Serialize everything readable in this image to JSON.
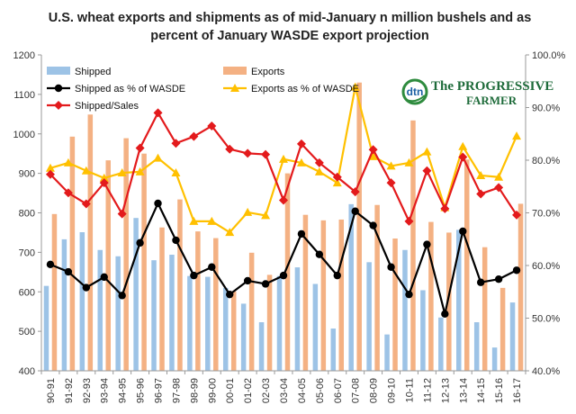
{
  "chart_data": {
    "type": "bar",
    "title_lines": [
      "U.S. wheat exports and shipments as of mid-January n million bushels and as",
      "percent of January WASDE export projection"
    ],
    "categories": [
      "90-91",
      "91-92",
      "92-93",
      "93-94",
      "94-95",
      "95-96",
      "96-97",
      "97-98",
      "98-99",
      "99-00",
      "00-01",
      "01-02",
      "02-03",
      "03-04",
      "04-05",
      "05-06",
      "06-07",
      "07-08",
      "08-09",
      "09-10",
      "10-11",
      "11-12",
      "12-13",
      "13-14",
      "14-15",
      "15-16",
      "16-17"
    ],
    "y_left": {
      "min": 400,
      "max": 1200,
      "step": 100
    },
    "y_right": {
      "min": 40,
      "max": 100,
      "step": 10,
      "suffix": ".0%"
    },
    "bar_series": [
      {
        "name": "Shipped",
        "color": "#9dc3e6",
        "values": [
          615,
          733,
          751,
          706,
          690,
          787,
          680,
          694,
          640,
          638,
          610,
          570,
          523,
          640,
          662,
          620,
          507,
          822,
          675,
          492,
          706,
          604,
          535,
          757,
          523,
          459,
          573
        ]
      },
      {
        "name": "Exports",
        "color": "#f4b183",
        "values": [
          797,
          993,
          1049,
          933,
          989,
          950,
          763,
          834,
          753,
          736,
          601,
          699,
          643,
          900,
          795,
          781,
          783,
          1130,
          820,
          735,
          1034,
          777,
          750,
          935,
          713,
          610,
          823
        ]
      }
    ],
    "line_series": [
      {
        "name": "Shipped as % of WASDE",
        "color": "#000000",
        "marker": "circle",
        "values": [
          60.2,
          58.8,
          55.8,
          57.8,
          54.3,
          64.3,
          71.8,
          64.8,
          58.1,
          59.7,
          54.5,
          57.1,
          56.5,
          58.1,
          66.0,
          62.1,
          58.1,
          70.3,
          67.6,
          59.7,
          54.5,
          64.0,
          50.8,
          66.5,
          56.8,
          57.4,
          59.1
        ]
      },
      {
        "name": "Exports as % of WASDE",
        "color": "#ffc000",
        "marker": "triangle",
        "values": [
          78.5,
          79.5,
          78.0,
          76.6,
          77.6,
          77.8,
          80.4,
          77.6,
          68.4,
          68.4,
          66.3,
          70.1,
          69.5,
          80.2,
          79.5,
          77.8,
          75.7,
          93.9,
          80.7,
          78.9,
          79.5,
          81.6,
          71.0,
          82.6,
          77.1,
          76.8,
          84.6
        ]
      },
      {
        "name": "Shipped/Sales",
        "color": "#e31a1c",
        "marker": "diamond",
        "values": [
          77.3,
          73.8,
          71.7,
          75.7,
          69.8,
          82.3,
          89.0,
          83.2,
          84.5,
          86.5,
          82.1,
          81.3,
          81.1,
          72.4,
          83.1,
          79.5,
          76.8,
          74.0,
          82.0,
          75.7,
          68.4,
          78.0,
          70.8,
          80.6,
          73.6,
          74.8,
          69.6
        ]
      }
    ],
    "legend_position": "top-left",
    "grid": false
  },
  "logo": {
    "badge_text": "dtn",
    "line1": "The PROGRESSIVE",
    "line2": "FARMER"
  }
}
